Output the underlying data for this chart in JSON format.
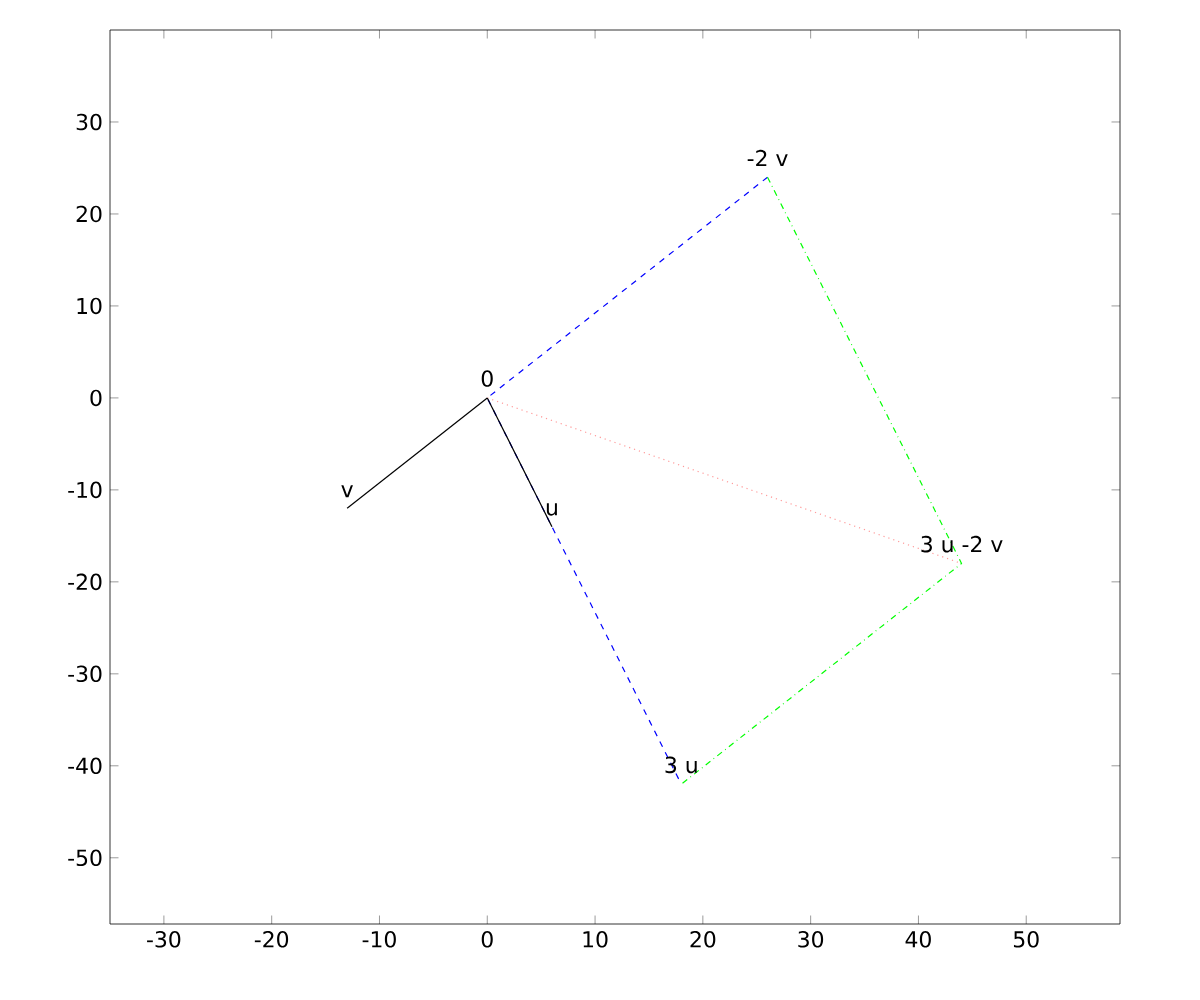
{
  "chart_data": {
    "type": "line",
    "marker": "none",
    "grid": false,
    "xlim": [
      -35,
      58.7
    ],
    "ylim": [
      -57.2,
      40
    ],
    "xticks": [
      -30,
      -20,
      -10,
      0,
      10,
      20,
      30,
      40,
      50
    ],
    "yticks": [
      -50,
      -40,
      -30,
      -20,
      -10,
      0,
      10,
      20,
      30
    ],
    "series": [
      {
        "color": "#0000ff",
        "line_style": "dashed",
        "x": [
          26,
          0,
          18
        ],
        "values": [
          24,
          0,
          -42
        ]
      },
      {
        "color": "#00ff00",
        "line_style": "dashdot",
        "x": [
          26,
          44,
          18
        ],
        "values": [
          24,
          -18,
          -42
        ]
      },
      {
        "color": "#ff9999",
        "line_style": "dotted",
        "x": [
          0,
          44
        ],
        "values": [
          0,
          -18
        ]
      },
      {
        "color": "#000000",
        "line_style": "solid",
        "x": [
          0,
          -13
        ],
        "values": [
          0,
          -12
        ]
      },
      {
        "color": "#000000",
        "line_style": "solid",
        "x": [
          0,
          6
        ],
        "values": [
          0,
          -14
        ]
      }
    ],
    "annotations": [
      {
        "text": "0",
        "x": 0,
        "y": 0
      },
      {
        "text": "v",
        "x": -13,
        "y": -12
      },
      {
        "text": "u",
        "x": 6,
        "y": -14
      },
      {
        "text": "-2 v",
        "x": 26,
        "y": 24
      },
      {
        "text": "3 u",
        "x": 18,
        "y": -42
      },
      {
        "text": "3 u -2 v",
        "x": 44,
        "y": -18
      }
    ]
  }
}
